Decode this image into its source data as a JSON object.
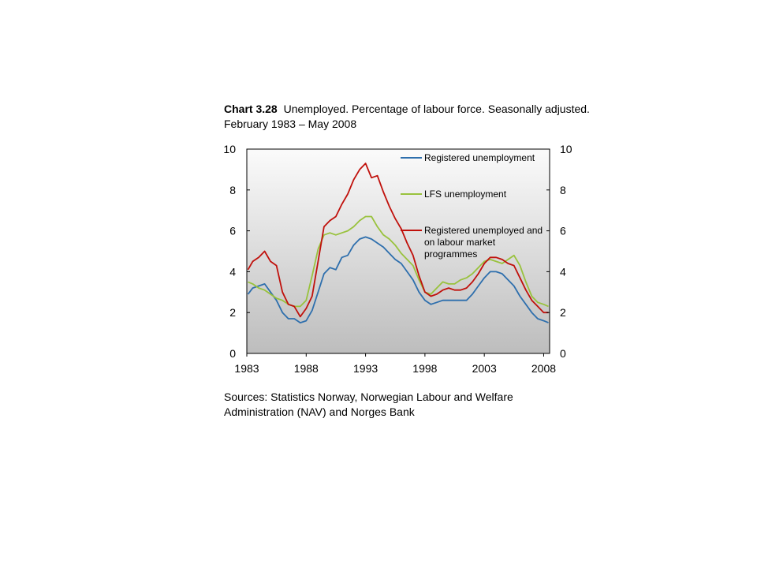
{
  "header": {
    "chart_number": "Chart 3.28",
    "title": "Unemployed. Percentage of labour force. Seasonally adjusted. February 1983 – May 2008"
  },
  "footer": {
    "sources": "Sources: Statistics Norway, Norwegian Labour and Welfare Administration (NAV) and Norges Bank"
  },
  "chart_data": {
    "type": "line",
    "title": "Unemployed. Percentage of labour force. Seasonally adjusted. February 1983 – May 2008",
    "xlabel": "",
    "ylabel": "",
    "xlim": [
      1983,
      2008.5
    ],
    "ylim": [
      0,
      10
    ],
    "x_ticks": [
      "1983",
      "1988",
      "1993",
      "1998",
      "2003",
      "2008"
    ],
    "y_ticks": [
      "0",
      "2",
      "4",
      "6",
      "8",
      "10"
    ],
    "y_axis_right": true,
    "background": "gradient light-to-dark grey",
    "grid": false,
    "legend_position": "top-right (inside)",
    "series": [
      {
        "name": "Registered unemployment",
        "color": "#2e6fad",
        "x": [
          1983.1,
          1983.5,
          1984.0,
          1984.5,
          1985.0,
          1985.5,
          1986.0,
          1986.5,
          1987.0,
          1987.5,
          1988.0,
          1988.5,
          1989.0,
          1989.5,
          1990.0,
          1990.5,
          1991.0,
          1991.5,
          1992.0,
          1992.5,
          1993.0,
          1993.5,
          1994.0,
          1994.5,
          1995.0,
          1995.5,
          1996.0,
          1996.5,
          1997.0,
          1997.5,
          1998.0,
          1998.5,
          1999.0,
          1999.5,
          2000.0,
          2000.5,
          2001.0,
          2001.5,
          2002.0,
          2002.5,
          2003.0,
          2003.5,
          2004.0,
          2004.5,
          2005.0,
          2005.5,
          2006.0,
          2006.5,
          2007.0,
          2007.5,
          2008.0,
          2008.4
        ],
        "y": [
          2.9,
          3.2,
          3.3,
          3.4,
          3.0,
          2.6,
          2.0,
          1.7,
          1.7,
          1.5,
          1.6,
          2.1,
          3.0,
          3.9,
          4.2,
          4.1,
          4.7,
          4.8,
          5.3,
          5.6,
          5.7,
          5.6,
          5.4,
          5.2,
          4.9,
          4.6,
          4.4,
          4.0,
          3.6,
          3.0,
          2.6,
          2.4,
          2.5,
          2.6,
          2.6,
          2.6,
          2.6,
          2.6,
          2.9,
          3.3,
          3.7,
          4.0,
          4.0,
          3.9,
          3.6,
          3.3,
          2.8,
          2.4,
          2.0,
          1.7,
          1.6,
          1.5
        ]
      },
      {
        "name": "LFS unemployment",
        "color": "#99c23d",
        "x": [
          1983.1,
          1983.5,
          1984.0,
          1984.5,
          1985.0,
          1985.5,
          1986.0,
          1986.5,
          1987.0,
          1987.5,
          1988.0,
          1988.5,
          1989.0,
          1989.5,
          1990.0,
          1990.5,
          1991.0,
          1991.5,
          1992.0,
          1992.5,
          1993.0,
          1993.5,
          1994.0,
          1994.5,
          1995.0,
          1995.5,
          1996.0,
          1996.5,
          1997.0,
          1997.5,
          1998.0,
          1998.5,
          1999.0,
          1999.5,
          2000.0,
          2000.5,
          2001.0,
          2001.5,
          2002.0,
          2002.5,
          2003.0,
          2003.5,
          2004.0,
          2004.5,
          2005.0,
          2005.5,
          2006.0,
          2006.5,
          2007.0,
          2007.5,
          2008.0,
          2008.4
        ],
        "y": [
          3.5,
          3.4,
          3.2,
          3.1,
          2.9,
          2.7,
          2.6,
          2.4,
          2.3,
          2.3,
          2.6,
          3.8,
          5.1,
          5.8,
          5.9,
          5.8,
          5.9,
          6.0,
          6.2,
          6.5,
          6.7,
          6.7,
          6.2,
          5.8,
          5.6,
          5.3,
          4.9,
          4.6,
          4.3,
          3.6,
          3.0,
          2.9,
          3.2,
          3.5,
          3.4,
          3.4,
          3.6,
          3.7,
          3.9,
          4.2,
          4.5,
          4.6,
          4.5,
          4.4,
          4.6,
          4.8,
          4.3,
          3.5,
          2.8,
          2.5,
          2.4,
          2.3
        ]
      },
      {
        "name": "Registered unemployed and on labour market programmes",
        "color": "#c0100b",
        "x": [
          1983.1,
          1983.5,
          1984.0,
          1984.5,
          1985.0,
          1985.5,
          1986.0,
          1986.5,
          1987.0,
          1987.5,
          1988.0,
          1988.5,
          1989.0,
          1989.5,
          1990.0,
          1990.5,
          1991.0,
          1991.5,
          1992.0,
          1992.5,
          1993.0,
          1993.5,
          1994.0,
          1994.5,
          1995.0,
          1995.5,
          1996.0,
          1996.5,
          1997.0,
          1997.5,
          1998.0,
          1998.5,
          1999.0,
          1999.5,
          2000.0,
          2000.5,
          2001.0,
          2001.5,
          2002.0,
          2002.5,
          2003.0,
          2003.5,
          2004.0,
          2004.5,
          2005.0,
          2005.5,
          2006.0,
          2006.5,
          2007.0,
          2007.5,
          2008.0,
          2008.4
        ],
        "y": [
          4.1,
          4.5,
          4.7,
          5.0,
          4.5,
          4.3,
          3.0,
          2.4,
          2.3,
          1.8,
          2.2,
          2.8,
          4.5,
          6.2,
          6.5,
          6.7,
          7.3,
          7.8,
          8.5,
          9.0,
          9.3,
          8.6,
          8.7,
          7.9,
          7.2,
          6.6,
          6.1,
          5.4,
          4.8,
          3.8,
          3.0,
          2.8,
          2.9,
          3.1,
          3.2,
          3.1,
          3.1,
          3.2,
          3.5,
          3.9,
          4.4,
          4.7,
          4.7,
          4.6,
          4.4,
          4.3,
          3.7,
          3.1,
          2.6,
          2.3,
          2.0,
          2.0
        ]
      }
    ]
  }
}
